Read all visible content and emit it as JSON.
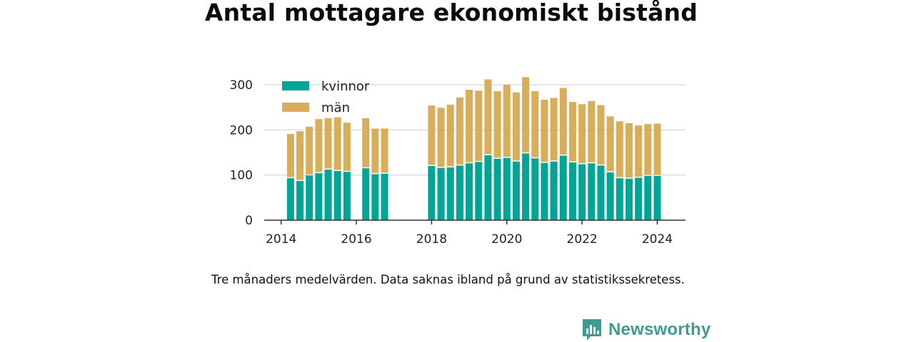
{
  "title": "Antal mottagare ekonomiskt bistånd",
  "caption": "Tre månaders medelvärden. Data saknas ibland på grund av statistikssekretess.",
  "brand": {
    "name": "Newsworthy",
    "color": "#3d9a95",
    "icon": "newsworthy-logo-icon"
  },
  "colors": {
    "kvinnor": "#00a596",
    "man": "#d9ae5a",
    "grid": "#dddddd",
    "axis": "#333333"
  },
  "chart_data": {
    "type": "bar",
    "stacked": true,
    "title": "Antal mottagare ekonomiskt bistånd",
    "xlabel": "",
    "ylabel": "",
    "ylim": [
      0,
      330
    ],
    "xlim": [
      2013.55,
      2024.75
    ],
    "yticks": [
      0,
      100,
      200,
      300
    ],
    "xticks": [
      2014,
      2016,
      2018,
      2020,
      2022,
      2024
    ],
    "grid": true,
    "legend_position": "top-left",
    "x": [
      2014.25,
      2014.5,
      2014.75,
      2015.0,
      2015.25,
      2015.5,
      2015.75,
      2016.25,
      2016.5,
      2016.75,
      2018.0,
      2018.25,
      2018.5,
      2018.75,
      2019.0,
      2019.25,
      2019.5,
      2019.75,
      2020.0,
      2020.25,
      2020.5,
      2020.75,
      2021.0,
      2021.25,
      2021.5,
      2021.75,
      2022.0,
      2022.25,
      2022.5,
      2022.75,
      2023.0,
      2023.25,
      2023.5,
      2023.75,
      2024.0
    ],
    "series": [
      {
        "name": "kvinnor",
        "values": [
          93,
          87,
          99,
          104,
          112,
          109,
          107,
          115,
          102,
          103,
          120,
          116,
          117,
          121,
          126,
          129,
          144,
          136,
          138,
          130,
          148,
          137,
          127,
          130,
          143,
          128,
          124,
          126,
          121,
          106,
          93,
          92,
          94,
          98,
          98
        ]
      },
      {
        "name": "män",
        "values": [
          98,
          110,
          108,
          120,
          114,
          119,
          109,
          111,
          101,
          100,
          134,
          133,
          139,
          151,
          163,
          158,
          168,
          150,
          162,
          153,
          169,
          149,
          140,
          141,
          150,
          134,
          133,
          138,
          134,
          124,
          126,
          123,
          116,
          115,
          116
        ]
      }
    ]
  }
}
